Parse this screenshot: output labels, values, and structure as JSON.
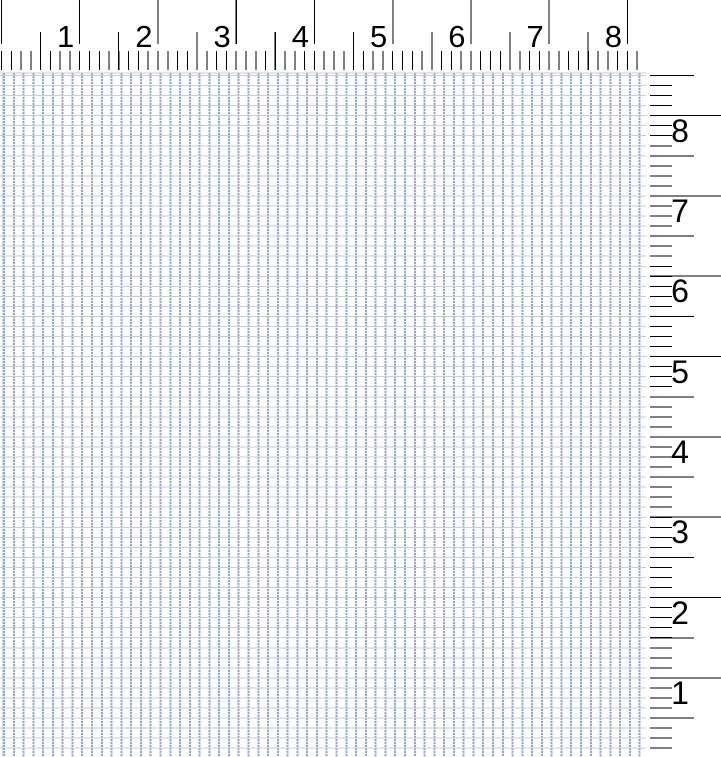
{
  "rulers": {
    "top": {
      "orientation": "horizontal",
      "labels": [
        "1",
        "2",
        "3",
        "4",
        "5",
        "6",
        "7",
        "8"
      ]
    },
    "right": {
      "orientation": "vertical",
      "labels": [
        "8",
        "7",
        "6",
        "5",
        "4",
        "3",
        "2",
        "1"
      ]
    }
  },
  "canvas": {
    "content": ""
  },
  "colors": {
    "ruler_background": "#ffffff",
    "tick": "#000000",
    "label_text": "#000000",
    "grid_background": "#ffffff",
    "grid_line_vertical": "#8fa7cd",
    "grid_line_horizontal": "#c9cedd"
  }
}
